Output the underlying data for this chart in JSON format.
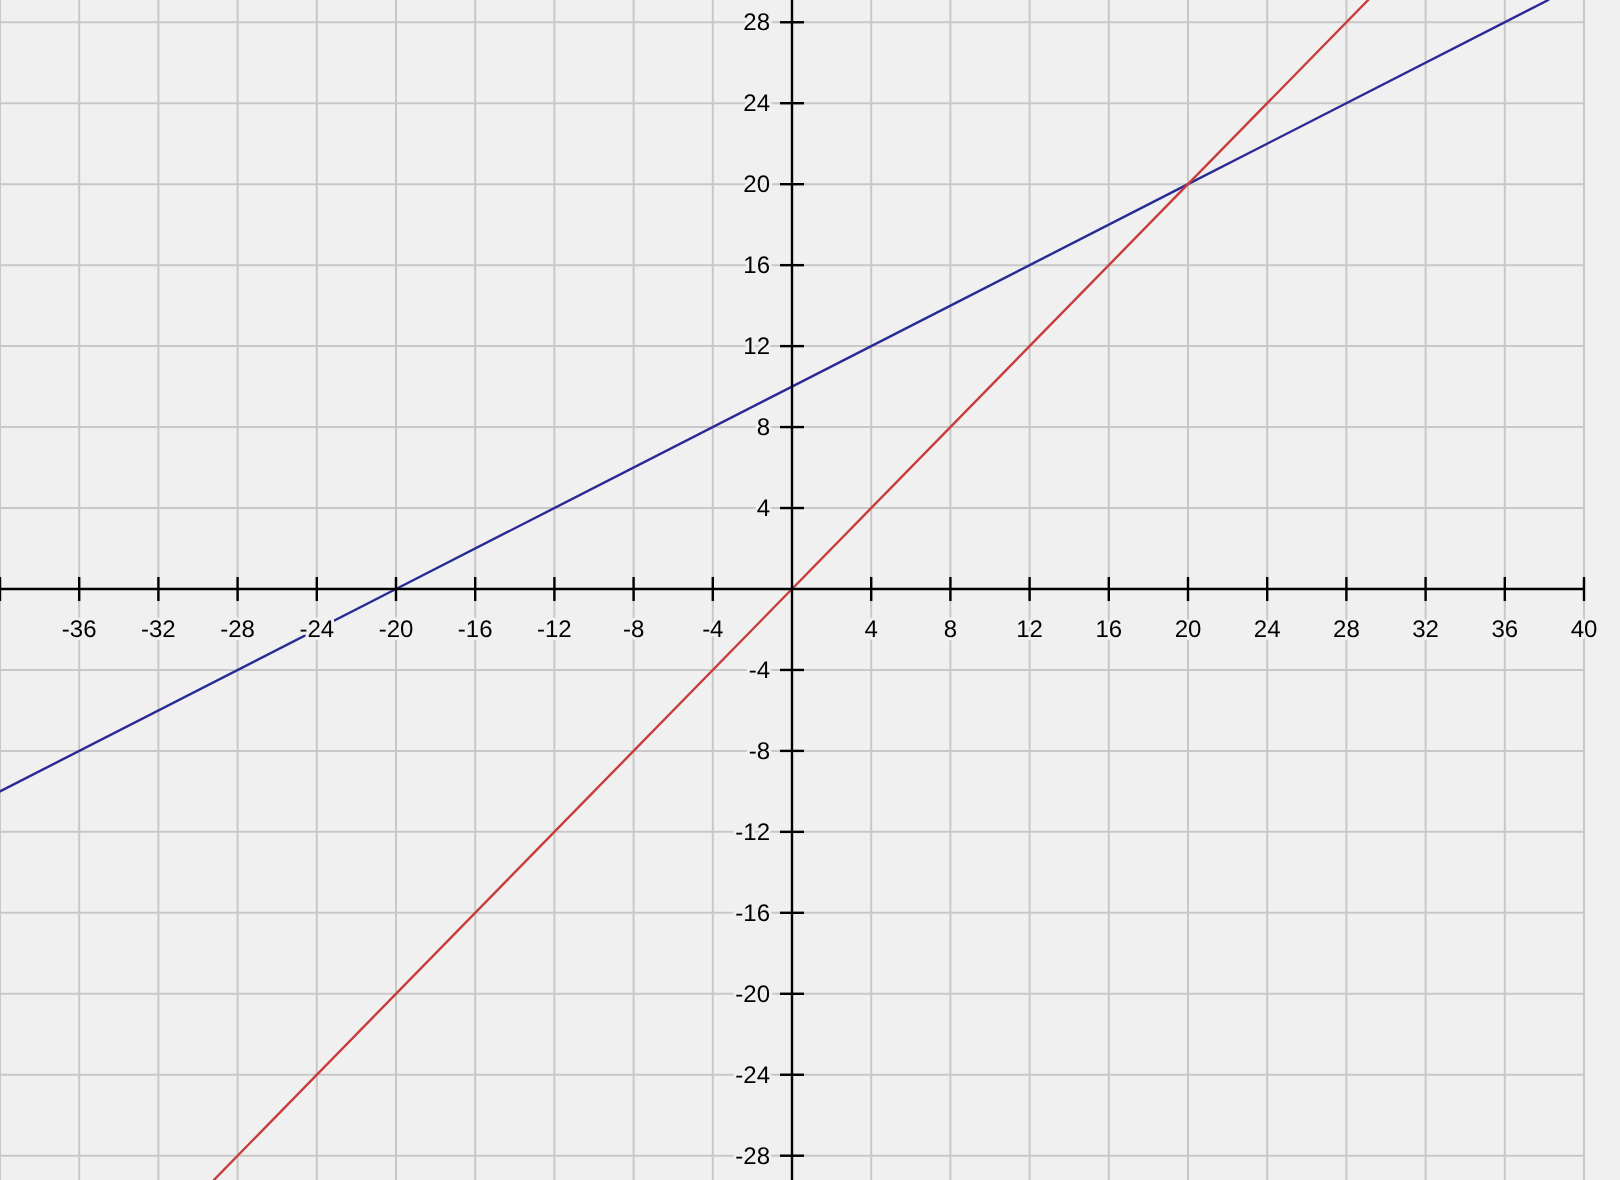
{
  "chart_data": {
    "type": "line",
    "series": [
      {
        "color": "#2a2a96",
        "x": [
          -40,
          -20,
          0,
          20,
          38.2
        ],
        "values": [
          -10,
          0,
          10,
          20,
          29.1
        ]
      },
      {
        "color": "#c83c3c",
        "x": [
          -29.2,
          0,
          20,
          29.1
        ],
        "values": [
          -29.2,
          0,
          20,
          29.1
        ]
      }
    ],
    "xlim": [
      -40,
      40
    ],
    "ylim": [
      -29.2,
      29.1
    ],
    "xticks": [
      {
        "value": -40,
        "label": null
      },
      -36,
      -32,
      -28,
      -24,
      -20,
      -16,
      -12,
      -8,
      -4,
      4,
      8,
      12,
      16,
      20,
      24,
      28,
      32,
      36,
      40
    ],
    "yticks": [
      -28,
      -24,
      -20,
      -16,
      -12,
      -8,
      -4,
      4,
      8,
      12,
      16,
      20,
      24,
      28
    ],
    "grid": true
  }
}
